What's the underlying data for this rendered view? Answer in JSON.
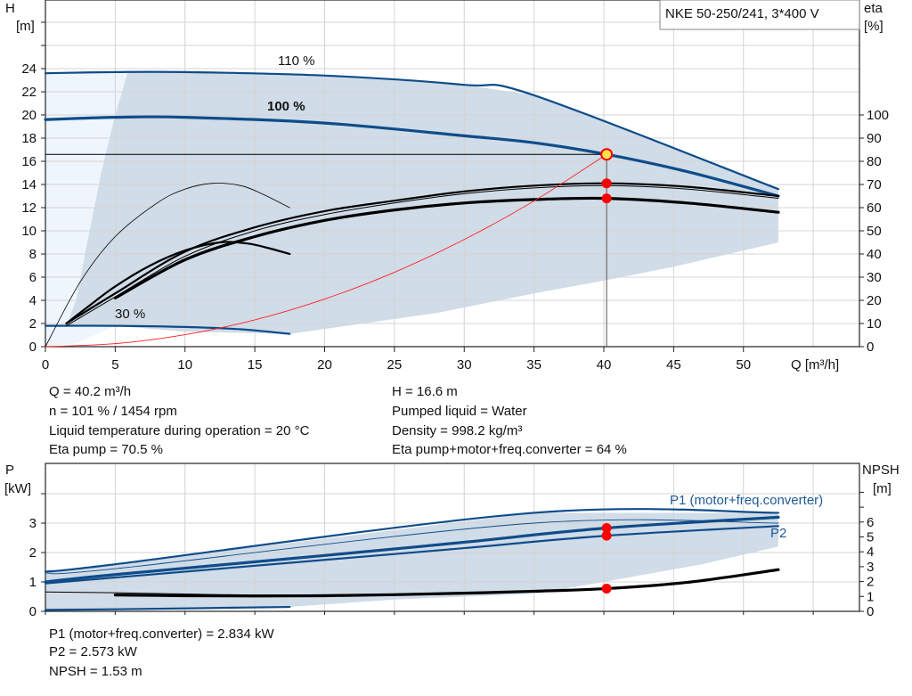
{
  "chart_data": [
    {
      "type": "line",
      "title": "NKE 50-250/241, 3*400 V",
      "xlabel": "Q [m³/h]",
      "ylabel_left": [
        "H",
        "[m]"
      ],
      "ylabel_right": [
        "eta",
        "[%]"
      ],
      "xlim": [
        0,
        58.3
      ],
      "ylim": [
        0,
        29.9
      ],
      "ylim_right": [
        0,
        149.5
      ],
      "xticks": [
        0,
        5,
        10,
        15,
        20,
        25,
        30,
        35,
        40,
        45,
        50
      ],
      "yticks": [
        0,
        2,
        4,
        6,
        8,
        10,
        12,
        14,
        16,
        18,
        20,
        22,
        24
      ],
      "yticks_right": [
        0,
        10,
        20,
        30,
        40,
        50,
        60,
        70,
        80,
        90,
        100
      ],
      "grid": true,
      "curve_labels": {
        "h110": "110 %",
        "h100": "100 %",
        "h30": "30 %"
      },
      "series": [
        {
          "id": "h110",
          "axis": "left",
          "color": "#0f4c8a",
          "width": 2.2,
          "points": [
            [
              0,
              23.6
            ],
            [
              5,
              23.7
            ],
            [
              10,
              23.7
            ],
            [
              20,
              23.4
            ],
            [
              30,
              22.6
            ],
            [
              35,
              21.7
            ],
            [
              52.5,
              13.6
            ]
          ]
        },
        {
          "id": "h100",
          "axis": "left",
          "color": "#0f4c8a",
          "width": 3.2,
          "points": [
            [
              0,
              19.6
            ],
            [
              5,
              19.8
            ],
            [
              10,
              19.8
            ],
            [
              20,
              19.3
            ],
            [
              30,
              18.2
            ],
            [
              35,
              17.6
            ],
            [
              40.2,
              16.6
            ],
            [
              46,
              15.1
            ],
            [
              52.5,
              13.0
            ]
          ]
        },
        {
          "id": "h30",
          "axis": "left",
          "color": "#0f4c8a",
          "width": 2.2,
          "points": [
            [
              0,
              1.8
            ],
            [
              5,
              1.8
            ],
            [
              10,
              1.7
            ],
            [
              14,
              1.5
            ],
            [
              17.5,
              1.1
            ]
          ]
        },
        {
          "id": "eta-pump",
          "axis": "right",
          "color": "#000",
          "width": 2.2,
          "points": [
            [
              1.5,
              10
            ],
            [
              5,
              23
            ],
            [
              10,
              41
            ],
            [
              15,
              51.5
            ],
            [
              20,
              58.5
            ],
            [
              25,
              63
            ],
            [
              30,
              67
            ],
            [
              35,
              69.5
            ],
            [
              40.2,
              70.5
            ],
            [
              46,
              69
            ],
            [
              52.5,
              65
            ]
          ]
        },
        {
          "id": "eta-pump-thin",
          "axis": "right",
          "color": "#000",
          "width": 1,
          "points": [
            [
              1.5,
              9
            ],
            [
              5,
              21.5
            ],
            [
              10,
              39
            ],
            [
              15,
              50
            ],
            [
              20,
              57
            ],
            [
              25,
              62
            ],
            [
              30,
              66
            ],
            [
              35,
              68.5
            ],
            [
              40.2,
              69.5
            ],
            [
              46,
              68
            ],
            [
              52.5,
              64
            ]
          ]
        },
        {
          "id": "eta-total",
          "axis": "right",
          "color": "#000",
          "width": 3.2,
          "points": [
            [
              5,
              21
            ],
            [
              10,
              37.5
            ],
            [
              15,
              47.5
            ],
            [
              20,
              54.5
            ],
            [
              25,
              59
            ],
            [
              30,
              62
            ],
            [
              35,
              63.5
            ],
            [
              40.2,
              64
            ],
            [
              46,
              62
            ],
            [
              52.5,
              58
            ]
          ]
        },
        {
          "id": "eta-low-thin",
          "axis": "right",
          "color": "#000",
          "width": 0.8,
          "points": [
            [
              0,
              0
            ],
            [
              2.5,
              28
            ],
            [
              5,
              47.5
            ],
            [
              8,
              62
            ],
            [
              10,
              68
            ],
            [
              12,
              70.5
            ],
            [
              14,
              69.5
            ],
            [
              15.5,
              66
            ],
            [
              17.5,
              60
            ]
          ]
        },
        {
          "id": "eta-low",
          "axis": "right",
          "color": "#000",
          "width": 2.2,
          "points": [
            [
              1.5,
              10
            ],
            [
              3,
              17
            ],
            [
              5,
              26
            ],
            [
              7.5,
              35
            ],
            [
              10,
              41.5
            ],
            [
              12.5,
              45
            ],
            [
              14.5,
              44.5
            ],
            [
              16,
              42.5
            ],
            [
              17.5,
              40
            ]
          ]
        },
        {
          "id": "system",
          "axis": "left",
          "color": "#ff2020",
          "width": 0.9,
          "points": [
            [
              0,
              0
            ],
            [
              5,
              0.26
            ],
            [
              10,
              1.03
            ],
            [
              15,
              2.31
            ],
            [
              20,
              4.11
            ],
            [
              25,
              6.42
            ],
            [
              30,
              9.25
            ],
            [
              35,
              12.58
            ],
            [
              40.2,
              16.6
            ]
          ]
        }
      ],
      "area_outer": [
        [
          0,
          0
        ],
        [
          0,
          23.6
        ],
        [
          5.9,
          23.7
        ],
        [
          10,
          23.7
        ],
        [
          20,
          23.4
        ],
        [
          30,
          22.6
        ],
        [
          35,
          21.7
        ],
        [
          52.5,
          13.6
        ],
        [
          52.5,
          9
        ],
        [
          45,
          6.9
        ],
        [
          40,
          5.7
        ],
        [
          35,
          4.6
        ],
        [
          28,
          2.9
        ],
        [
          17.5,
          1.1
        ],
        [
          10,
          1.3
        ],
        [
          5,
          1.8
        ],
        [
          2.2,
          0.3
        ]
      ],
      "area_inner": [
        [
          5.9,
          23.7
        ],
        [
          5,
          20
        ],
        [
          4,
          15
        ],
        [
          3,
          9
        ],
        [
          2.2,
          4
        ],
        [
          1.5,
          1.8
        ],
        [
          5,
          1.8
        ],
        [
          10,
          1.3
        ],
        [
          17.5,
          1.1
        ],
        [
          28,
          2.9
        ],
        [
          35,
          4.6
        ],
        [
          40,
          5.7
        ],
        [
          45,
          6.9
        ],
        [
          52.5,
          9
        ],
        [
          52.5,
          13.6
        ],
        [
          35,
          21.7
        ],
        [
          30,
          22.6
        ],
        [
          20,
          23.4
        ],
        [
          10,
          23.7
        ]
      ],
      "operating_point": {
        "q": 40.2,
        "h": 16.6,
        "eta_pump": 70.5,
        "eta_total": 64
      }
    },
    {
      "type": "line",
      "ylabel_left": [
        "P",
        "[kW]"
      ],
      "ylabel_right": [
        "NPSH",
        "[m]"
      ],
      "xlim": [
        0,
        58.3
      ],
      "ylim": [
        0,
        5
      ],
      "ylim_right": [
        0,
        9.9
      ],
      "yticks": [
        0,
        1,
        2,
        3
      ],
      "yticks_right": [
        0,
        1,
        2,
        3,
        4,
        5,
        6
      ],
      "grid": true,
      "curve_labels": {
        "p1": "P1 (motor+freq.converter)",
        "p2": "P2"
      },
      "series": [
        {
          "id": "p1-110",
          "axis": "left",
          "color": "#0f4c8a",
          "width": 2.2,
          "points": [
            [
              0,
              1.35
            ],
            [
              5,
              1.6
            ],
            [
              35,
              3.35
            ],
            [
              52.5,
              3.35
            ]
          ]
        },
        {
          "id": "p1-thin",
          "axis": "left",
          "color": "#0f4c8a",
          "width": 0.9,
          "points": [
            [
              0,
              1.3
            ],
            [
              5,
              1.45
            ],
            [
              35,
              3.0
            ],
            [
              52.5,
              3.0
            ]
          ]
        },
        {
          "id": "p1",
          "axis": "left",
          "color": "#0f4c8a",
          "width": 3.2,
          "points": [
            [
              0,
              1.0
            ],
            [
              5,
              1.25
            ],
            [
              20,
              1.9
            ],
            [
              30,
              2.35
            ],
            [
              40.2,
              2.834
            ],
            [
              52.5,
              3.2
            ]
          ]
        },
        {
          "id": "p2",
          "axis": "left",
          "color": "#0f4c8a",
          "width": 2.2,
          "points": [
            [
              0,
              0.95
            ],
            [
              5,
              1.15
            ],
            [
              20,
              1.75
            ],
            [
              30,
              2.15
            ],
            [
              40.2,
              2.573
            ],
            [
              52.5,
              2.9
            ]
          ]
        },
        {
          "id": "p-low",
          "axis": "left",
          "color": "#0f4c8a",
          "width": 2.2,
          "points": [
            [
              0,
              0.05
            ],
            [
              5,
              0.07
            ],
            [
              17.5,
              0.15
            ]
          ]
        },
        {
          "id": "npsh",
          "axis": "right",
          "color": "#000",
          "width": 3.2,
          "points": [
            [
              5,
              1.1
            ],
            [
              10,
              1.05
            ],
            [
              15,
              1.03
            ],
            [
              20,
              1.05
            ],
            [
              25,
              1.12
            ],
            [
              30,
              1.22
            ],
            [
              35,
              1.35
            ],
            [
              40.2,
              1.53
            ],
            [
              46,
              1.95
            ],
            [
              52.5,
              2.8
            ]
          ]
        },
        {
          "id": "npsh-thin",
          "axis": "right",
          "color": "#000",
          "width": 1,
          "points": [
            [
              0,
              1.3
            ],
            [
              5,
              1.25
            ],
            [
              15,
              1.1
            ],
            [
              25,
              1.15
            ]
          ]
        }
      ],
      "area": [
        [
          0,
          0.05
        ],
        [
          0,
          1.35
        ],
        [
          5,
          1.6
        ],
        [
          35,
          3.35
        ],
        [
          52.5,
          3.35
        ],
        [
          52.5,
          2.2
        ],
        [
          47,
          1.6
        ],
        [
          40,
          1.0
        ],
        [
          35,
          0.6
        ],
        [
          25,
          0.4
        ],
        [
          17.5,
          0.15
        ],
        [
          5,
          0.07
        ],
        [
          2,
          0.05
        ]
      ],
      "points": {
        "p1": 2.834,
        "p2": 2.573,
        "npsh": 1.53
      }
    }
  ],
  "info_top": {
    "left": [
      "Q = 40.2 m³/h",
      "n = 101 % / 1454 rpm",
      "Liquid temperature during operation = 20 °C",
      "Eta pump = 70.5 %"
    ],
    "right": [
      "H = 16.6 m",
      "Pumped liquid = Water",
      "Density = 998.2 kg/m³",
      "Eta pump+motor+freq.converter = 64 %"
    ]
  },
  "info_bottom": [
    "P1 (motor+freq.converter) = 2.834 kW",
    "P2 = 2.573 kW",
    "NPSH = 1.53 m"
  ],
  "colors": {
    "curve": "#0f4c8a",
    "area": "#d0dce8",
    "area_light": "#eef5fc",
    "grid": "#d4d4d4",
    "point": "#ff0000",
    "op_fill": "#ffe14d"
  }
}
